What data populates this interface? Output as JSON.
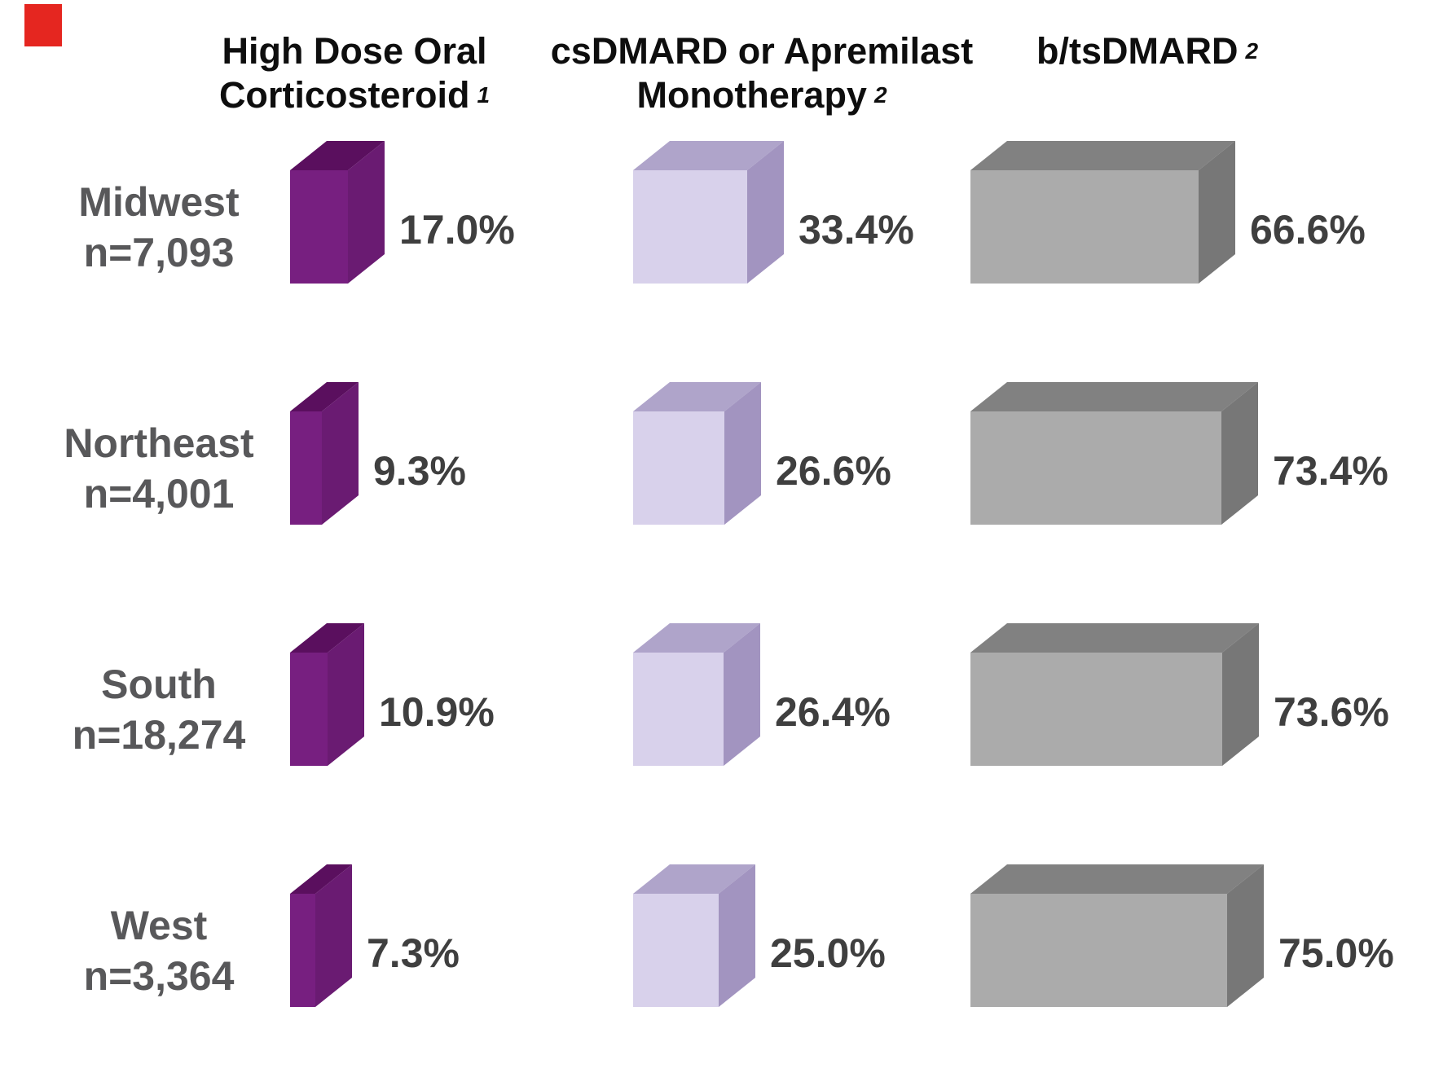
{
  "decor": {
    "red_fragment_color": "#e52620"
  },
  "headers": [
    {
      "line1": "High Dose Oral",
      "line2": "Corticosteroid",
      "sup": "1"
    },
    {
      "line1": "csDMARD or Apremilast",
      "line2": "Monotherapy",
      "sup": "2"
    },
    {
      "line1": "b/tsDMARD",
      "sup": "2"
    }
  ],
  "colors": {
    "header_text": "#0e0e0e",
    "row_label_text": "#58585a",
    "value_label_text": "#3f3f3f",
    "background": "#ffffff"
  },
  "chart_data": {
    "type": "bar",
    "variant": "3d-horizontal-boxes",
    "title": "",
    "xlabel": "",
    "ylabel": "",
    "xlim": [
      0,
      100
    ],
    "value_unit": "%",
    "grid": false,
    "legend_position": "column-headers-top",
    "categories": [
      "Midwest",
      "Northeast",
      "South",
      "West"
    ],
    "category_sample_sizes": [
      "n=7,093",
      "n=4,001",
      "n=18,274",
      "n=3,364"
    ],
    "series": [
      {
        "name": "High Dose Oral Corticosteroid",
        "footnote": "1",
        "key": "high-dose-oral-corticosteroid",
        "front_color": "#771f80",
        "top_color": "#5a0f5e",
        "side_color": "#6a1b72",
        "values": [
          17.0,
          9.3,
          10.9,
          7.3
        ],
        "value_labels": [
          "17.0%",
          "9.3%",
          "10.9%",
          "7.3%"
        ]
      },
      {
        "name": "csDMARD or Apremilast Monotherapy",
        "footnote": "2",
        "key": "csdmard-or-apremilast-monotherapy",
        "front_color": "#d8d1eb",
        "top_color": "#afa4ca",
        "side_color": "#a294c0",
        "values": [
          33.4,
          26.6,
          26.4,
          25.0
        ],
        "value_labels": [
          "33.4%",
          "26.6%",
          "26.4%",
          "25.0%"
        ]
      },
      {
        "name": "b/tsDMARD",
        "footnote": "2",
        "key": "b-tsdmard",
        "front_color": "#ababab",
        "top_color": "#818181",
        "side_color": "#777777",
        "values": [
          66.6,
          73.4,
          73.6,
          75.0
        ],
        "value_labels": [
          "66.6%",
          "73.4%",
          "73.6%",
          "75.0%"
        ]
      }
    ]
  }
}
